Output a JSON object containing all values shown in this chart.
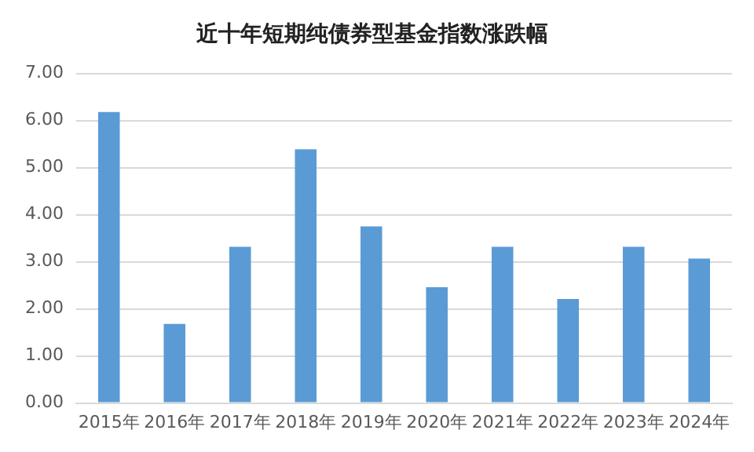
{
  "chart_data": {
    "type": "bar",
    "title": "近十年短期纯债券型基金指数涨跌幅",
    "categories": [
      "2015年",
      "2016年",
      "2017年",
      "2018年",
      "2019年",
      "2020年",
      "2021年",
      "2022年",
      "2023年",
      "2024年"
    ],
    "values": [
      6.18,
      1.68,
      3.32,
      5.39,
      3.75,
      2.46,
      3.32,
      2.21,
      3.32,
      3.07
    ],
    "color": "#5b9bd5",
    "ylim": [
      0,
      7
    ],
    "yticks": [
      {
        "value": 0,
        "label": "0.00"
      },
      {
        "value": 1,
        "label": "1.00"
      },
      {
        "value": 2,
        "label": "2.00"
      },
      {
        "value": 3,
        "label": "3.00"
      },
      {
        "value": 4,
        "label": "4.00"
      },
      {
        "value": 5,
        "label": "5.00"
      },
      {
        "value": 6,
        "label": "6.00"
      },
      {
        "value": 7,
        "label": "7.00"
      }
    ],
    "grid": "y"
  }
}
